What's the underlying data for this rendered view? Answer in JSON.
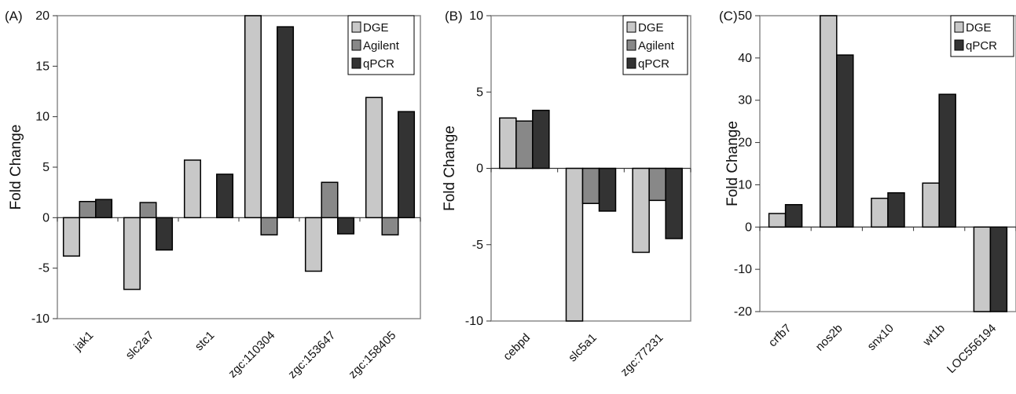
{
  "chart_data": [
    {
      "panel_label": "(A)",
      "type": "bar",
      "ylabel": "Fold Change",
      "ylim": [
        -10,
        20
      ],
      "yticks": [
        -10,
        -5,
        0,
        5,
        10,
        15,
        20
      ],
      "grid": false,
      "legend_position": "top-right",
      "categories": [
        "jak1",
        "slc2a7",
        "stc1",
        "zgc:110304",
        "zgc:153647",
        "zgc:158405"
      ],
      "series": [
        {
          "name": "DGE",
          "color": "#c8c8c8",
          "values": [
            -3.8,
            -7.1,
            5.7,
            20.5,
            -5.3,
            11.9
          ]
        },
        {
          "name": "Agilent",
          "color": "#888888",
          "values": [
            1.6,
            1.5,
            0,
            -1.7,
            3.5,
            -1.7
          ]
        },
        {
          "name": "qPCR",
          "color": "#333333",
          "values": [
            1.8,
            -3.2,
            4.3,
            18.9,
            -1.6,
            10.5
          ]
        }
      ]
    },
    {
      "panel_label": "(B)",
      "type": "bar",
      "ylabel": "Fold Change",
      "ylim": [
        -10,
        10
      ],
      "yticks": [
        -10,
        -5,
        0,
        5,
        10
      ],
      "grid": false,
      "legend_position": "top-right",
      "categories": [
        "cebpd",
        "slc5a1",
        "zgc:77231"
      ],
      "series": [
        {
          "name": "DGE",
          "color": "#c8c8c8",
          "values": [
            3.3,
            -10.0,
            -5.5
          ]
        },
        {
          "name": "Agilent",
          "color": "#888888",
          "values": [
            3.1,
            -2.3,
            -2.1
          ]
        },
        {
          "name": "qPCR",
          "color": "#333333",
          "values": [
            3.8,
            -2.8,
            -4.6
          ]
        }
      ]
    },
    {
      "panel_label": "(C)",
      "type": "bar",
      "ylabel": "Fold Change",
      "ylim": [
        -20,
        50
      ],
      "yticks": [
        -20,
        -10,
        0,
        10,
        20,
        30,
        40,
        50
      ],
      "grid": false,
      "legend_position": "top-right",
      "categories": [
        "crfb7",
        "nos2b",
        "snx10",
        "wt1b",
        "LOC556194"
      ],
      "series": [
        {
          "name": "DGE",
          "color": "#c8c8c8",
          "values": [
            3.2,
            51.0,
            6.8,
            10.4,
            -20.5
          ]
        },
        {
          "name": "qPCR",
          "color": "#333333",
          "values": [
            5.3,
            40.7,
            8.1,
            31.4,
            -20.5
          ]
        }
      ]
    }
  ]
}
